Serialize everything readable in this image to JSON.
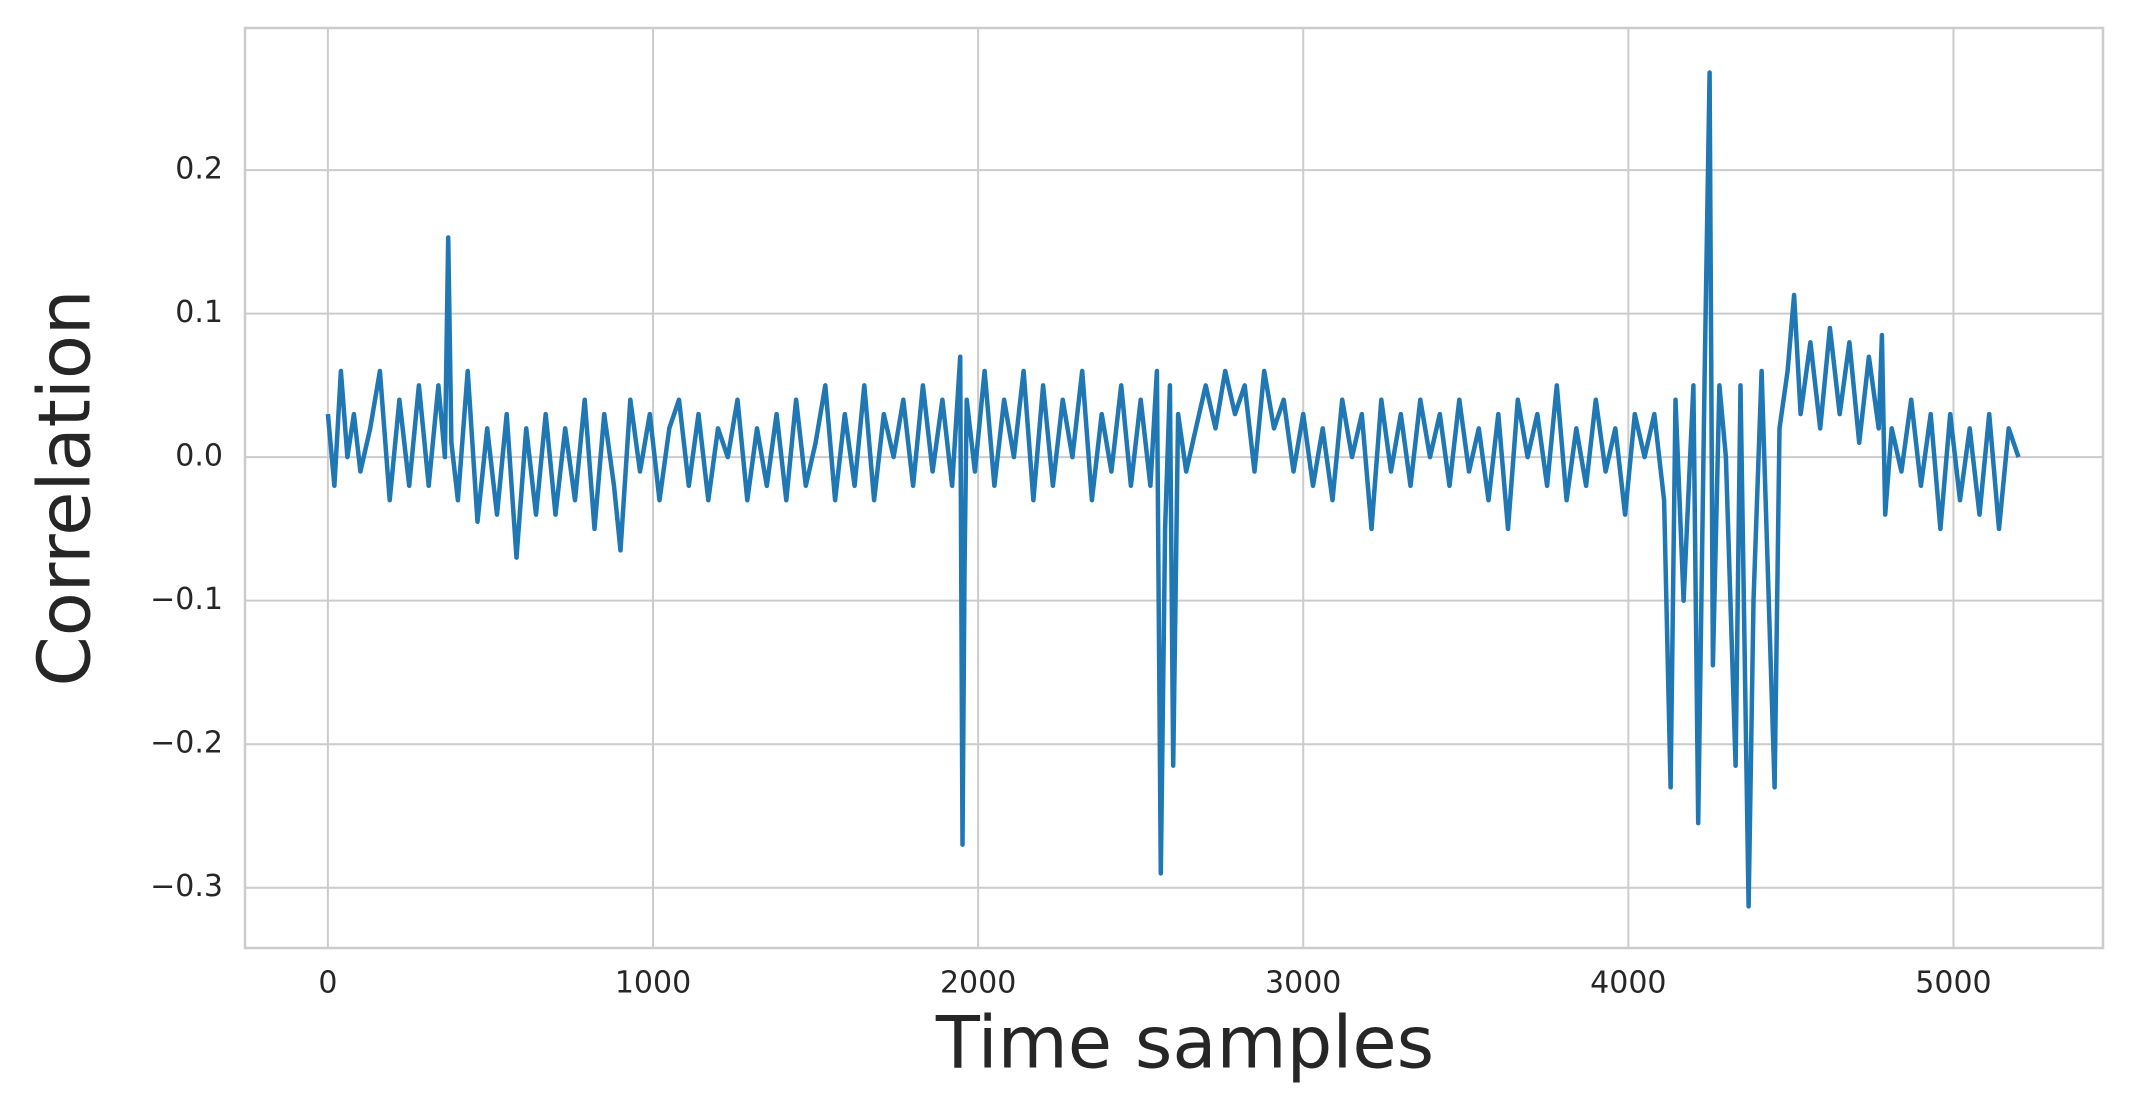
{
  "chart_data": {
    "type": "line",
    "xlabel": "Time samples",
    "ylabel": "Correlation",
    "color": "#1f77b4",
    "grid": true,
    "xlim": [
      -255,
      5460
    ],
    "ylim": [
      -0.342,
      0.299
    ],
    "xticks": [
      0,
      1000,
      2000,
      3000,
      4000,
      5000
    ],
    "yticks": [
      {
        "value": -0.3,
        "label": "−0.3"
      },
      {
        "value": -0.2,
        "label": "−0.2"
      },
      {
        "value": -0.1,
        "label": "−0.1"
      },
      {
        "value": 0,
        "label": "0.0"
      },
      0.1,
      0.2
    ],
    "x": [
      0,
      20,
      40,
      60,
      80,
      100,
      130,
      160,
      190,
      220,
      250,
      280,
      310,
      340,
      360,
      370,
      380,
      400,
      430,
      460,
      490,
      520,
      550,
      580,
      610,
      640,
      670,
      700,
      730,
      760,
      790,
      820,
      850,
      880,
      900,
      930,
      960,
      990,
      1020,
      1050,
      1080,
      1110,
      1140,
      1170,
      1200,
      1230,
      1260,
      1290,
      1320,
      1350,
      1380,
      1410,
      1440,
      1470,
      1500,
      1530,
      1560,
      1590,
      1620,
      1650,
      1680,
      1710,
      1740,
      1770,
      1800,
      1830,
      1860,
      1890,
      1920,
      1945,
      1952,
      1958,
      1965,
      1990,
      2020,
      2050,
      2080,
      2110,
      2140,
      2170,
      2200,
      2230,
      2260,
      2290,
      2320,
      2350,
      2380,
      2410,
      2440,
      2470,
      2500,
      2530,
      2550,
      2562,
      2575,
      2590,
      2600,
      2615,
      2640,
      2670,
      2700,
      2730,
      2760,
      2790,
      2820,
      2850,
      2880,
      2910,
      2940,
      2970,
      3000,
      3030,
      3060,
      3090,
      3120,
      3150,
      3180,
      3210,
      3240,
      3270,
      3300,
      3330,
      3360,
      3390,
      3420,
      3450,
      3480,
      3510,
      3540,
      3570,
      3600,
      3630,
      3660,
      3690,
      3720,
      3750,
      3780,
      3810,
      3840,
      3870,
      3900,
      3930,
      3960,
      3990,
      4020,
      4050,
      4080,
      4110,
      4130,
      4145,
      4170,
      4200,
      4215,
      4235,
      4250,
      4260,
      4280,
      4300,
      4330,
      4345,
      4370,
      4385,
      4410,
      4450,
      4465,
      4490,
      4510,
      4530,
      4560,
      4590,
      4620,
      4650,
      4680,
      4710,
      4740,
      4770,
      4780,
      4790,
      4810,
      4840,
      4870,
      4900,
      4930,
      4960,
      4990,
      5020,
      5050,
      5080,
      5110,
      5140,
      5170,
      5200
    ],
    "values": [
      0.03,
      -0.02,
      0.06,
      0.0,
      0.03,
      -0.01,
      0.02,
      0.06,
      -0.03,
      0.04,
      -0.02,
      0.05,
      -0.02,
      0.05,
      0.0,
      0.153,
      0.01,
      -0.03,
      0.06,
      -0.045,
      0.02,
      -0.04,
      0.03,
      -0.07,
      0.02,
      -0.04,
      0.03,
      -0.04,
      0.02,
      -0.03,
      0.04,
      -0.05,
      0.03,
      -0.02,
      -0.065,
      0.04,
      -0.01,
      0.03,
      -0.03,
      0.02,
      0.04,
      -0.02,
      0.03,
      -0.03,
      0.02,
      0.0,
      0.04,
      -0.03,
      0.02,
      -0.02,
      0.03,
      -0.03,
      0.04,
      -0.02,
      0.01,
      0.05,
      -0.03,
      0.03,
      -0.02,
      0.05,
      -0.03,
      0.03,
      0.0,
      0.04,
      -0.02,
      0.05,
      -0.01,
      0.04,
      -0.02,
      0.07,
      -0.27,
      -0.08,
      0.04,
      -0.01,
      0.06,
      -0.02,
      0.04,
      0.0,
      0.06,
      -0.03,
      0.05,
      -0.02,
      0.04,
      0.0,
      0.06,
      -0.03,
      0.03,
      -0.01,
      0.05,
      -0.02,
      0.04,
      -0.02,
      0.06,
      -0.29,
      -0.05,
      0.05,
      -0.215,
      0.03,
      -0.01,
      0.02,
      0.05,
      0.02,
      0.06,
      0.03,
      0.05,
      -0.01,
      0.06,
      0.02,
      0.04,
      -0.01,
      0.03,
      -0.02,
      0.02,
      -0.03,
      0.04,
      0.0,
      0.03,
      -0.05,
      0.04,
      -0.01,
      0.03,
      -0.02,
      0.04,
      0.0,
      0.03,
      -0.02,
      0.04,
      -0.01,
      0.02,
      -0.03,
      0.03,
      -0.05,
      0.04,
      0.0,
      0.03,
      -0.02,
      0.05,
      -0.03,
      0.02,
      -0.02,
      0.04,
      -0.01,
      0.02,
      -0.04,
      0.03,
      0.0,
      0.03,
      -0.03,
      -0.23,
      0.04,
      -0.1,
      0.05,
      -0.255,
      0.06,
      0.268,
      -0.145,
      0.05,
      0.0,
      -0.215,
      0.05,
      -0.313,
      -0.1,
      0.06,
      -0.23,
      0.02,
      0.06,
      0.113,
      0.03,
      0.08,
      0.02,
      0.09,
      0.03,
      0.08,
      0.01,
      0.07,
      0.02,
      0.085,
      -0.04,
      0.02,
      -0.01,
      0.04,
      -0.02,
      0.03,
      -0.05,
      0.03,
      -0.03,
      0.02,
      -0.04,
      0.03,
      -0.05,
      0.02,
      0.0
    ]
  }
}
